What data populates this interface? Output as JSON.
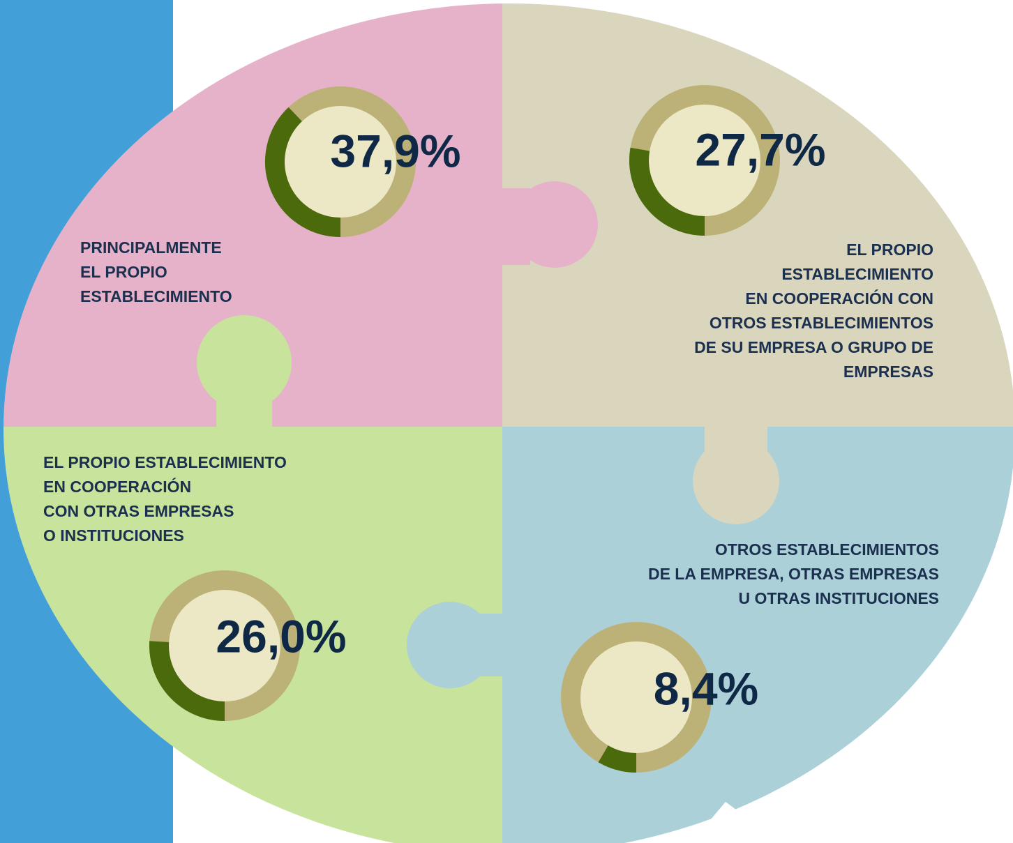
{
  "chart_data": {
    "type": "donut-gauges",
    "categories": [
      "PRINCIPALMENTE\nEL PROPIO\nESTABLECIMIENTO",
      "EL PROPIO\nESTABLECIMIENTO\nEN COOPERACIÓN CON\nOTROS ESTABLECIMIENTOS\nDE SU EMPRESA O GRUPO DE\nEMPRESAS",
      "EL PROPIO ESTABLECIMIENTO\nEN COOPERACIÓN\nCON OTRAS EMPRESAS\nO INSTITUCIONES",
      "OTROS ESTABLECIMIENTOS\nDE LA EMPRESA, OTRAS EMPRESAS\nU OTRAS INSTITUCIONES"
    ],
    "values": [
      37.9,
      27.7,
      26.0,
      8.4
    ],
    "value_labels": [
      "37,9%",
      "27,7%",
      "26,0%",
      "8,4%"
    ],
    "ylim": [
      0,
      100
    ],
    "color": "#4a6a0b"
  }
}
